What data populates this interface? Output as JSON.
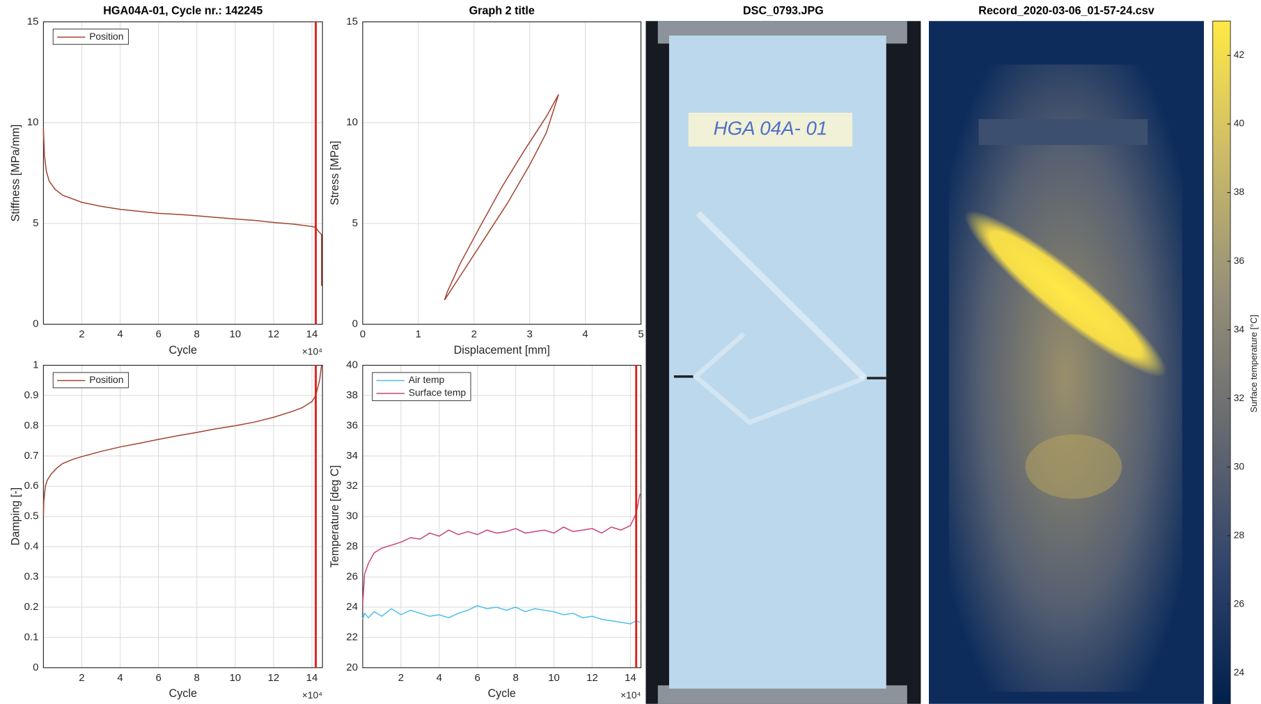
{
  "chart_data": [
    {
      "type": "line",
      "title": "HGA04A-01, Cycle nr.: 142245",
      "x_label": "Cycle",
      "y_label": "Stiffness [MPa/mm]",
      "x_multiplier": "×10⁴",
      "x": [
        0,
        0.05,
        0.15,
        0.3,
        0.6,
        1,
        2,
        3,
        4,
        5,
        6,
        7,
        8,
        9,
        10,
        11,
        12,
        13,
        14,
        14.2,
        14.35,
        14.45,
        14.5,
        14.5
      ],
      "series": [
        {
          "name": "Position",
          "color": "#a2442f",
          "values": [
            9.7,
            8.4,
            7.6,
            7.1,
            6.7,
            6.4,
            6.05,
            5.85,
            5.7,
            5.6,
            5.5,
            5.45,
            5.38,
            5.3,
            5.22,
            5.15,
            5.05,
            4.97,
            4.85,
            4.8,
            4.6,
            4.5,
            4.45,
            1.9
          ]
        }
      ],
      "xlim": [
        0,
        14.55
      ],
      "xticks": [
        2,
        4,
        6,
        8,
        10,
        12,
        14
      ],
      "ylim": [
        0,
        15
      ],
      "yticks": [
        0,
        5,
        10,
        15
      ],
      "grid": true,
      "legend": "upper-left",
      "vline": {
        "x": 14.2,
        "color": "#e0201b"
      }
    },
    {
      "type": "line",
      "title": "Graph 2 title",
      "x_label": "Displacement [mm]",
      "y_label": "Stress [MPa]",
      "x": [
        1.47,
        1.8,
        2.2,
        2.6,
        3.0,
        3.3,
        3.52,
        3.3,
        2.9,
        2.5,
        2.1,
        1.75,
        1.52,
        1.47
      ],
      "series": [
        {
          "color": "#a2442f",
          "values": [
            1.2,
            2.6,
            4.3,
            6.0,
            7.9,
            9.5,
            11.4,
            10.3,
            8.6,
            6.8,
            4.8,
            3.0,
            1.6,
            1.2
          ]
        }
      ],
      "xlim": [
        0,
        5
      ],
      "xticks": [
        0,
        1,
        2,
        3,
        4,
        5
      ],
      "ylim": [
        0,
        15
      ],
      "yticks": [
        0,
        5,
        10,
        15
      ],
      "grid": true
    },
    {
      "type": "line",
      "x_label": "Cycle",
      "y_label": "Damping [-]",
      "x_multiplier": "×10⁴",
      "x": [
        0,
        0.02,
        0.1,
        0.2,
        0.4,
        0.7,
        1,
        1.5,
        2,
        3,
        4,
        5,
        6,
        7,
        8,
        9,
        10,
        11,
        12,
        13,
        13.5,
        14,
        14.2,
        14.4,
        14.5
      ],
      "series": [
        {
          "name": "Position",
          "color": "#a2442f",
          "values": [
            0.5,
            0.55,
            0.6,
            0.62,
            0.64,
            0.66,
            0.675,
            0.688,
            0.698,
            0.715,
            0.73,
            0.742,
            0.755,
            0.767,
            0.778,
            0.79,
            0.8,
            0.812,
            0.828,
            0.848,
            0.86,
            0.88,
            0.9,
            0.95,
            1.0
          ]
        }
      ],
      "xlim": [
        0,
        14.55
      ],
      "xticks": [
        2,
        4,
        6,
        8,
        10,
        12,
        14
      ],
      "ylim": [
        0,
        1
      ],
      "yticks": [
        0,
        0.1,
        0.2,
        0.3,
        0.4,
        0.5,
        0.6,
        0.7,
        0.8,
        0.9,
        1
      ],
      "grid": true,
      "legend": "upper-left",
      "vline": {
        "x": 14.2,
        "color": "#e0201b"
      }
    },
    {
      "type": "line",
      "x_label": "Cycle",
      "y_label": "Temperature [deg C]",
      "x_multiplier": "×10⁴",
      "x": [
        0,
        0.1,
        0.3,
        0.6,
        1,
        1.5,
        2,
        2.5,
        3,
        3.5,
        4,
        4.5,
        5,
        5.5,
        6,
        6.5,
        7,
        7.5,
        8,
        8.5,
        9,
        9.5,
        10,
        10.5,
        11,
        11.5,
        12,
        12.5,
        13,
        13.5,
        14,
        14.3,
        14.5
      ],
      "series": [
        {
          "name": "Air temp",
          "color": "#4dbeee",
          "values": [
            23.2,
            23.6,
            23.3,
            23.7,
            23.4,
            23.9,
            23.5,
            23.8,
            23.6,
            23.4,
            23.5,
            23.3,
            23.6,
            23.8,
            24.1,
            23.9,
            24.0,
            23.8,
            24.0,
            23.7,
            23.9,
            23.8,
            23.7,
            23.5,
            23.6,
            23.3,
            23.4,
            23.2,
            23.1,
            23.0,
            22.9,
            23.1,
            23.0
          ]
        },
        {
          "name": "Surface temp",
          "color": "#c8407c",
          "values": [
            24.2,
            26.2,
            26.9,
            27.6,
            27.9,
            28.1,
            28.3,
            28.6,
            28.5,
            28.9,
            28.7,
            29.1,
            28.8,
            29.0,
            28.8,
            29.1,
            28.9,
            29.0,
            29.2,
            28.9,
            29.0,
            29.1,
            28.9,
            29.3,
            29.0,
            29.1,
            29.2,
            28.9,
            29.3,
            29.1,
            29.4,
            30.2,
            31.5
          ]
        }
      ],
      "xlim": [
        0,
        14.55
      ],
      "xticks": [
        2,
        4,
        6,
        8,
        10,
        12,
        14
      ],
      "ylim": [
        20,
        40
      ],
      "yticks": [
        20,
        22,
        24,
        26,
        28,
        30,
        32,
        34,
        36,
        38,
        40
      ],
      "grid": true,
      "legend": "upper-left",
      "vline": {
        "x": 14.3,
        "color": "#e0201b"
      }
    },
    {
      "type": "photo",
      "title": "DSC_0793.JPG",
      "label_text": "HGA 04A- 01"
    },
    {
      "type": "thermal",
      "title": "Record_2020-03-06_01-57-24.csv",
      "colorbar_label": "Surface temperature [°C]",
      "clim": [
        23.1,
        43.0
      ],
      "cticks": [
        24,
        26,
        28,
        30,
        32,
        34,
        36,
        38,
        40,
        42
      ],
      "colormap": [
        "#00204d",
        "#31446b",
        "#666970",
        "#958f78",
        "#cbba69",
        "#ffe945"
      ]
    }
  ]
}
